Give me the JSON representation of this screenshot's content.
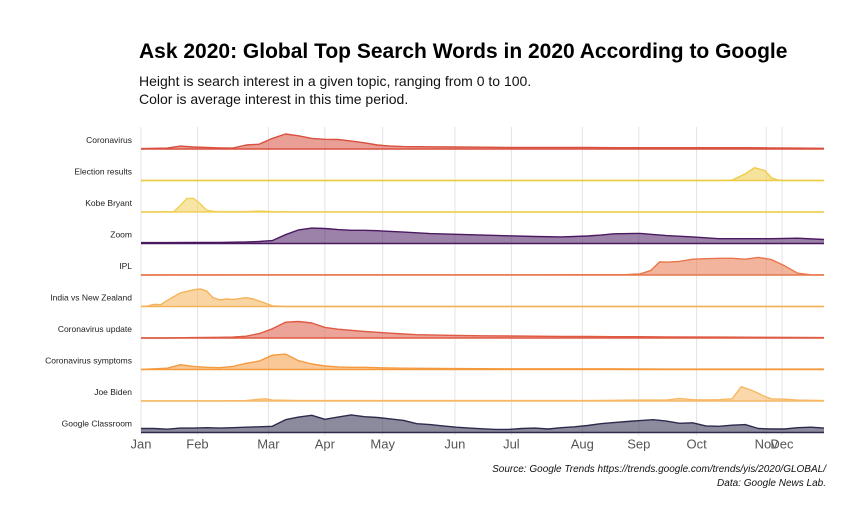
{
  "chart_data": {
    "type": "area",
    "title": "Ask 2020: Global Top Search Words in 2020 According to Google",
    "subtitle_lines": [
      "Height is search interest in a given topic, ranging from 0 to 100.",
      "Color is average interest in this time period."
    ],
    "caption_lines": [
      "Source: Google Trends https://trends.google.com/trends/yis/2020/GLOBAL/",
      "Data: Google News Lab."
    ],
    "x_unit": "week of 2020",
    "xlim": [
      0,
      52
    ],
    "x_ticks": [
      {
        "label": "Jan",
        "x": 0
      },
      {
        "label": "Feb",
        "x": 4.3
      },
      {
        "label": "Mar",
        "x": 9.7
      },
      {
        "label": "Apr",
        "x": 14
      },
      {
        "label": "May",
        "x": 18.4
      },
      {
        "label": "Jun",
        "x": 23.9
      },
      {
        "label": "Jul",
        "x": 28.2
      },
      {
        "label": "Aug",
        "x": 33.6
      },
      {
        "label": "Sep",
        "x": 37.9
      },
      {
        "label": "Oct",
        "x": 42.3
      },
      {
        "label": "Nov",
        "x": 47.6
      },
      {
        "label": "Dec",
        "x": 48.8
      }
    ],
    "ylim": [
      0,
      100
    ],
    "grid": true,
    "legend": "none",
    "series": [
      {
        "name": "Coronavirus",
        "color": "#d9503f",
        "x": [
          0,
          2,
          3,
          4,
          5,
          6,
          7,
          8,
          9,
          10,
          11,
          12,
          13,
          14,
          15,
          16,
          17,
          18,
          19,
          20,
          22,
          24,
          26,
          28,
          30,
          32,
          34,
          36,
          38,
          40,
          42,
          44,
          46,
          48,
          50,
          52
        ],
        "values": [
          2,
          4,
          13,
          9,
          7,
          5,
          4,
          18,
          22,
          48,
          68,
          60,
          48,
          44,
          43,
          36,
          28,
          18,
          13,
          11,
          10,
          9,
          8,
          7,
          7,
          7,
          7,
          6,
          6,
          6,
          6,
          6,
          6,
          5,
          4,
          3
        ]
      },
      {
        "name": "Election results",
        "color": "#eecc48",
        "x": [
          0,
          44,
          45,
          46,
          46.7,
          47.5,
          48,
          48.5,
          49,
          52
        ],
        "values": [
          0,
          0,
          2,
          30,
          58,
          45,
          12,
          2,
          0,
          0
        ]
      },
      {
        "name": "Kobe Bryant",
        "color": "#f0d058",
        "x": [
          0,
          2.5,
          3,
          3.5,
          4,
          4.5,
          5,
          5.5,
          6,
          7,
          8,
          9,
          10,
          12,
          20,
          30,
          52
        ],
        "values": [
          0,
          2,
          30,
          62,
          62,
          38,
          8,
          3,
          2,
          2,
          2,
          4,
          2,
          1,
          0,
          0,
          0
        ]
      },
      {
        "name": "Zoom",
        "color": "#4b1961",
        "x": [
          0,
          2,
          4,
          6,
          8,
          9,
          10,
          11,
          12,
          13,
          14,
          15,
          16,
          17,
          18,
          20,
          22,
          24,
          26,
          28,
          30,
          32,
          34,
          35,
          36,
          38,
          40,
          42,
          44,
          46,
          48,
          50,
          52
        ],
        "values": [
          4,
          4,
          5,
          5,
          7,
          9,
          13,
          40,
          62,
          70,
          68,
          63,
          60,
          60,
          58,
          52,
          45,
          42,
          38,
          35,
          32,
          30,
          34,
          38,
          44,
          46,
          36,
          30,
          22,
          22,
          22,
          24,
          18
        ]
      },
      {
        "name": "IPL",
        "color": "#e8764a",
        "x": [
          0,
          10,
          20,
          30,
          37,
          38,
          38.8,
          39.5,
          40,
          41,
          42,
          43,
          44,
          45,
          46,
          47,
          48,
          49,
          50,
          51,
          52
        ],
        "values": [
          0,
          1,
          1,
          1,
          2,
          5,
          20,
          60,
          58,
          62,
          72,
          74,
          76,
          76,
          72,
          80,
          70,
          42,
          8,
          1,
          0
        ]
      },
      {
        "name": "India vs New Zealand",
        "color": "#f6b35a",
        "x": [
          0,
          0.5,
          1,
          1.5,
          2,
          3,
          4,
          4.5,
          5,
          5.5,
          6,
          6.5,
          7,
          7.5,
          8,
          8.5,
          9,
          10,
          11,
          12,
          52
        ],
        "values": [
          0,
          2,
          10,
          8,
          28,
          62,
          76,
          80,
          70,
          40,
          30,
          34,
          32,
          36,
          40,
          35,
          25,
          3,
          0,
          0,
          0
        ]
      },
      {
        "name": "Coronavirus update",
        "color": "#df5a43",
        "x": [
          0,
          2,
          4,
          6,
          7,
          8,
          9,
          10,
          11,
          12,
          13,
          14,
          15,
          16,
          17,
          18,
          19,
          20,
          21,
          22,
          24,
          26,
          28,
          30,
          32,
          34,
          36,
          38,
          40,
          44,
          48,
          52
        ],
        "values": [
          0,
          0,
          2,
          3,
          4,
          8,
          20,
          42,
          72,
          75,
          68,
          48,
          40,
          35,
          30,
          26,
          22,
          18,
          15,
          14,
          12,
          10,
          9,
          8,
          7,
          7,
          6,
          6,
          5,
          4,
          3,
          2
        ]
      },
      {
        "name": "Coronavirus symptoms",
        "color": "#f59a3f",
        "x": [
          0,
          1,
          2,
          3,
          4,
          5,
          6,
          7,
          8,
          9,
          10,
          11,
          12,
          13,
          14,
          15,
          16,
          17,
          18,
          20,
          24,
          28,
          32,
          36,
          40,
          44,
          48,
          52
        ],
        "values": [
          0,
          3,
          6,
          22,
          14,
          10,
          8,
          14,
          28,
          38,
          65,
          70,
          40,
          25,
          16,
          12,
          10,
          10,
          8,
          6,
          4,
          3,
          3,
          3,
          2,
          2,
          2,
          2
        ]
      },
      {
        "name": "Joe Biden",
        "color": "#f7b865",
        "x": [
          0,
          2,
          4,
          6,
          8,
          9,
          9.5,
          10,
          12,
          16,
          20,
          24,
          28,
          32,
          34,
          36,
          38,
          40,
          41,
          42,
          43,
          44,
          45,
          45.7,
          46.5,
          47,
          47.5,
          48,
          49,
          50,
          52
        ],
        "values": [
          1,
          1,
          1,
          1,
          2,
          8,
          10,
          4,
          2,
          2,
          2,
          2,
          2,
          2,
          2,
          3,
          4,
          4,
          12,
          6,
          5,
          6,
          10,
          65,
          48,
          35,
          20,
          10,
          8,
          4,
          2
        ]
      },
      {
        "name": "Google Classroom",
        "color": "#2d2b4c",
        "x": [
          0,
          1,
          2,
          3,
          4,
          5,
          6,
          7,
          8,
          9,
          10,
          11,
          12,
          13,
          14,
          15,
          16,
          17,
          18,
          19,
          20,
          21,
          22,
          23,
          24,
          25,
          26,
          27,
          28,
          29,
          30,
          31,
          32,
          33,
          34,
          35,
          36,
          37,
          38,
          39,
          40,
          41,
          42,
          43,
          44,
          45,
          46,
          47,
          48,
          49,
          50,
          51,
          52
        ],
        "values": [
          18,
          18,
          15,
          20,
          20,
          22,
          20,
          22,
          24,
          26,
          28,
          58,
          70,
          78,
          60,
          70,
          80,
          72,
          68,
          62,
          55,
          40,
          36,
          30,
          24,
          20,
          17,
          14,
          14,
          18,
          20,
          16,
          22,
          26,
          32,
          40,
          45,
          50,
          54,
          58,
          52,
          42,
          44,
          30,
          28,
          33,
          36,
          18,
          16,
          16,
          22,
          24,
          20
        ]
      }
    ]
  }
}
